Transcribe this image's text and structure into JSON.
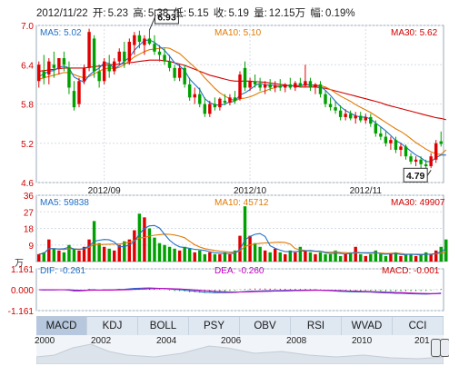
{
  "header": {
    "date": "2012/11/22",
    "open_label": "开:",
    "open": "5.23",
    "high_label": "高:",
    "high": "5.38",
    "low_label": "低:",
    "low": "5.15",
    "close_label": "收:",
    "close": "5.19",
    "volume_label": "量:",
    "volume": "12.15万",
    "amplitude_label": "幅:",
    "amplitude": "0.19%"
  },
  "chart_data": [
    {
      "type": "candlestick",
      "panel": "price",
      "ylim": [
        4.6,
        7.0
      ],
      "yticks": [
        "7.0",
        "6.4",
        "5.8",
        "5.2",
        "4.6"
      ],
      "xtick_labels": [
        {
          "label": "2012/09",
          "index": 13
        },
        {
          "label": "2012/10",
          "index": 42
        },
        {
          "label": "2012/11",
          "index": 65
        }
      ],
      "legend": [
        {
          "text": "MA5: 5.02",
          "color": "#2070c8",
          "place": "top-left"
        },
        {
          "text": "MA10: 5.10",
          "color": "#e07a00",
          "place": "top-center"
        },
        {
          "text": "MA30: 5.62",
          "color": "#d00000",
          "place": "top-right"
        }
      ],
      "annotations": [
        {
          "text": "6.93",
          "index": 22,
          "value": 6.93
        },
        {
          "text": "4.79",
          "index": 78,
          "value": 4.79
        }
      ],
      "candles": [
        {
          "o": 6.15,
          "h": 6.45,
          "l": 6.05,
          "c": 6.4
        },
        {
          "o": 6.3,
          "h": 6.55,
          "l": 6.1,
          "c": 6.2
        },
        {
          "o": 6.25,
          "h": 6.5,
          "l": 6.1,
          "c": 6.45
        },
        {
          "o": 6.4,
          "h": 6.6,
          "l": 6.2,
          "c": 6.35
        },
        {
          "o": 6.35,
          "h": 6.5,
          "l": 6.25,
          "c": 6.5
        },
        {
          "o": 6.5,
          "h": 6.6,
          "l": 6.3,
          "c": 6.4
        },
        {
          "o": 6.35,
          "h": 6.45,
          "l": 5.95,
          "c": 6.05
        },
        {
          "o": 6.0,
          "h": 6.15,
          "l": 5.7,
          "c": 5.75
        },
        {
          "o": 5.8,
          "h": 6.2,
          "l": 5.75,
          "c": 6.15
        },
        {
          "o": 6.15,
          "h": 6.4,
          "l": 6.1,
          "c": 6.35
        },
        {
          "o": 6.35,
          "h": 6.95,
          "l": 6.3,
          "c": 6.9
        },
        {
          "o": 6.8,
          "h": 6.85,
          "l": 6.2,
          "c": 6.3
        },
        {
          "o": 6.3,
          "h": 6.4,
          "l": 6.05,
          "c": 6.15
        },
        {
          "o": 6.15,
          "h": 6.5,
          "l": 6.1,
          "c": 6.45
        },
        {
          "o": 6.4,
          "h": 6.55,
          "l": 6.2,
          "c": 6.3
        },
        {
          "o": 6.3,
          "h": 6.5,
          "l": 6.25,
          "c": 6.45
        },
        {
          "o": 6.45,
          "h": 6.65,
          "l": 6.4,
          "c": 6.6
        },
        {
          "o": 6.6,
          "h": 6.75,
          "l": 6.35,
          "c": 6.45
        },
        {
          "o": 6.45,
          "h": 6.8,
          "l": 6.4,
          "c": 6.75
        },
        {
          "o": 6.7,
          "h": 6.9,
          "l": 6.55,
          "c": 6.85
        },
        {
          "o": 6.85,
          "h": 6.92,
          "l": 6.65,
          "c": 6.75
        },
        {
          "o": 6.7,
          "h": 6.85,
          "l": 6.55,
          "c": 6.8
        },
        {
          "o": 6.8,
          "h": 6.93,
          "l": 6.7,
          "c": 6.72
        },
        {
          "o": 6.72,
          "h": 6.85,
          "l": 6.55,
          "c": 6.6
        },
        {
          "o": 6.6,
          "h": 6.7,
          "l": 6.45,
          "c": 6.55
        },
        {
          "o": 6.55,
          "h": 6.65,
          "l": 6.4,
          "c": 6.45
        },
        {
          "o": 6.45,
          "h": 6.55,
          "l": 6.3,
          "c": 6.35
        },
        {
          "o": 6.35,
          "h": 6.4,
          "l": 6.15,
          "c": 6.2
        },
        {
          "o": 6.2,
          "h": 6.4,
          "l": 6.15,
          "c": 6.35
        },
        {
          "o": 6.35,
          "h": 6.4,
          "l": 6.05,
          "c": 6.1
        },
        {
          "o": 6.1,
          "h": 6.2,
          "l": 5.85,
          "c": 5.9
        },
        {
          "o": 5.9,
          "h": 6.05,
          "l": 5.8,
          "c": 5.95
        },
        {
          "o": 5.95,
          "h": 6.05,
          "l": 5.75,
          "c": 5.8
        },
        {
          "o": 5.8,
          "h": 5.9,
          "l": 5.6,
          "c": 5.65
        },
        {
          "o": 5.65,
          "h": 5.85,
          "l": 5.6,
          "c": 5.8
        },
        {
          "o": 5.8,
          "h": 5.9,
          "l": 5.7,
          "c": 5.75
        },
        {
          "o": 5.75,
          "h": 5.9,
          "l": 5.7,
          "c": 5.88
        },
        {
          "o": 5.85,
          "h": 5.95,
          "l": 5.78,
          "c": 5.82
        },
        {
          "o": 5.82,
          "h": 5.95,
          "l": 5.78,
          "c": 5.9
        },
        {
          "o": 5.9,
          "h": 6.0,
          "l": 5.8,
          "c": 5.85
        },
        {
          "o": 5.88,
          "h": 6.3,
          "l": 5.85,
          "c": 6.25
        },
        {
          "o": 6.35,
          "h": 6.45,
          "l": 6.0,
          "c": 6.05
        },
        {
          "o": 6.05,
          "h": 6.2,
          "l": 6.0,
          "c": 6.15
        },
        {
          "o": 6.15,
          "h": 6.25,
          "l": 6.05,
          "c": 6.1
        },
        {
          "o": 6.1,
          "h": 6.2,
          "l": 6.0,
          "c": 6.05
        },
        {
          "o": 6.05,
          "h": 6.15,
          "l": 5.95,
          "c": 6.1
        },
        {
          "o": 6.1,
          "h": 6.18,
          "l": 6.0,
          "c": 6.05
        },
        {
          "o": 6.05,
          "h": 6.15,
          "l": 5.98,
          "c": 6.08
        },
        {
          "o": 6.08,
          "h": 6.18,
          "l": 6.0,
          "c": 6.05
        },
        {
          "o": 6.05,
          "h": 6.12,
          "l": 5.98,
          "c": 6.1
        },
        {
          "o": 6.1,
          "h": 6.2,
          "l": 6.02,
          "c": 6.05
        },
        {
          "o": 6.05,
          "h": 6.15,
          "l": 6.0,
          "c": 6.12
        },
        {
          "o": 6.12,
          "h": 6.2,
          "l": 6.05,
          "c": 6.08
        },
        {
          "o": 6.08,
          "h": 6.4,
          "l": 6.05,
          "c": 6.15
        },
        {
          "o": 6.15,
          "h": 6.2,
          "l": 6.0,
          "c": 6.05
        },
        {
          "o": 6.05,
          "h": 6.12,
          "l": 5.95,
          "c": 6.1
        },
        {
          "o": 6.1,
          "h": 6.15,
          "l": 5.9,
          "c": 5.95
        },
        {
          "o": 5.95,
          "h": 6.0,
          "l": 5.75,
          "c": 5.8
        },
        {
          "o": 5.8,
          "h": 5.9,
          "l": 5.7,
          "c": 5.75
        },
        {
          "o": 5.75,
          "h": 5.85,
          "l": 5.65,
          "c": 5.7
        },
        {
          "o": 5.7,
          "h": 5.78,
          "l": 5.55,
          "c": 5.6
        },
        {
          "o": 5.6,
          "h": 5.72,
          "l": 5.55,
          "c": 5.65
        },
        {
          "o": 5.65,
          "h": 5.7,
          "l": 5.55,
          "c": 5.58
        },
        {
          "o": 5.58,
          "h": 5.68,
          "l": 5.5,
          "c": 5.62
        },
        {
          "o": 5.62,
          "h": 5.68,
          "l": 5.52,
          "c": 5.55
        },
        {
          "o": 5.55,
          "h": 5.65,
          "l": 5.5,
          "c": 5.6
        },
        {
          "o": 5.6,
          "h": 5.65,
          "l": 5.45,
          "c": 5.5
        },
        {
          "o": 5.5,
          "h": 5.55,
          "l": 5.3,
          "c": 5.35
        },
        {
          "o": 5.35,
          "h": 5.45,
          "l": 5.25,
          "c": 5.3
        },
        {
          "o": 5.3,
          "h": 5.38,
          "l": 5.15,
          "c": 5.2
        },
        {
          "o": 5.2,
          "h": 5.3,
          "l": 5.1,
          "c": 5.25
        },
        {
          "o": 5.25,
          "h": 5.3,
          "l": 5.05,
          "c": 5.1
        },
        {
          "o": 5.1,
          "h": 5.2,
          "l": 5.0,
          "c": 5.15
        },
        {
          "o": 5.15,
          "h": 5.18,
          "l": 4.95,
          "c": 5.0
        },
        {
          "o": 5.0,
          "h": 5.05,
          "l": 4.88,
          "c": 4.92
        },
        {
          "o": 4.92,
          "h": 5.0,
          "l": 4.85,
          "c": 4.95
        },
        {
          "o": 4.95,
          "h": 5.0,
          "l": 4.82,
          "c": 4.88
        },
        {
          "o": 4.88,
          "h": 4.95,
          "l": 4.79,
          "c": 4.85
        },
        {
          "o": 4.85,
          "h": 5.05,
          "l": 4.82,
          "c": 5.0
        },
        {
          "o": 4.95,
          "h": 5.25,
          "l": 4.9,
          "c": 5.2
        },
        {
          "o": 5.23,
          "h": 5.38,
          "l": 5.15,
          "c": 5.19
        }
      ],
      "ma5": [
        6.22,
        6.26,
        6.3,
        6.31,
        6.36,
        6.38,
        6.35,
        6.21,
        6.17,
        6.13,
        6.24,
        6.3,
        6.35,
        6.43,
        6.42,
        6.33,
        6.39,
        6.45,
        6.51,
        6.62,
        6.7,
        6.77,
        6.78,
        6.74,
        6.68,
        6.62,
        6.53,
        6.43,
        6.38,
        6.31,
        6.18,
        6.1,
        6.02,
        5.88,
        5.82,
        5.79,
        5.78,
        5.8,
        5.83,
        5.84,
        5.94,
        5.97,
        6.02,
        6.08,
        6.12,
        6.09,
        6.09,
        6.08,
        6.07,
        6.08,
        6.08,
        6.08,
        6.08,
        6.1,
        6.09,
        6.08,
        6.07,
        6.01,
        5.93,
        5.84,
        5.76,
        5.7,
        5.66,
        5.62,
        5.6,
        5.6,
        5.57,
        5.51,
        5.45,
        5.39,
        5.32,
        5.24,
        5.2,
        5.14,
        5.08,
        5.02,
        4.98,
        4.92,
        4.92,
        4.98,
        5.02,
        5.02
      ],
      "ma10": [
        6.18,
        6.2,
        6.22,
        6.24,
        6.26,
        6.28,
        6.28,
        6.25,
        6.22,
        6.2,
        6.22,
        6.26,
        6.3,
        6.34,
        6.35,
        6.34,
        6.36,
        6.4,
        6.46,
        6.52,
        6.56,
        6.6,
        6.63,
        6.64,
        6.65,
        6.66,
        6.65,
        6.61,
        6.57,
        6.5,
        6.43,
        6.36,
        6.29,
        6.2,
        6.12,
        6.04,
        5.97,
        5.92,
        5.88,
        5.85,
        5.88,
        5.89,
        5.91,
        5.94,
        5.98,
        6.0,
        6.03,
        6.05,
        6.07,
        6.08,
        6.08,
        6.08,
        6.08,
        6.09,
        6.09,
        6.09,
        6.08,
        6.06,
        6.02,
        5.97,
        5.92,
        5.88,
        5.84,
        5.79,
        5.75,
        5.71,
        5.67,
        5.62,
        5.57,
        5.52,
        5.47,
        5.42,
        5.38,
        5.33,
        5.27,
        5.21,
        5.16,
        5.11,
        5.07,
        5.04,
        5.03,
        5.1
      ],
      "ma30": [
        6.3,
        6.31,
        6.32,
        6.33,
        6.34,
        6.35,
        6.35,
        6.35,
        6.35,
        6.35,
        6.36,
        6.37,
        6.38,
        6.39,
        6.4,
        6.4,
        6.41,
        6.42,
        6.43,
        6.44,
        6.45,
        6.46,
        6.47,
        6.47,
        6.47,
        6.46,
        6.45,
        6.43,
        6.41,
        6.39,
        6.36,
        6.33,
        6.3,
        6.27,
        6.24,
        6.22,
        6.2,
        6.18,
        6.16,
        6.15,
        6.15,
        6.15,
        6.15,
        6.14,
        6.14,
        6.13,
        6.12,
        6.11,
        6.1,
        6.09,
        6.08,
        6.07,
        6.06,
        6.06,
        6.06,
        6.06,
        6.05,
        6.04,
        6.02,
        6.0,
        5.98,
        5.96,
        5.94,
        5.92,
        5.9,
        5.88,
        5.86,
        5.84,
        5.82,
        5.79,
        5.77,
        5.75,
        5.73,
        5.71,
        5.69,
        5.67,
        5.65,
        5.63,
        5.61,
        5.59,
        5.58,
        5.56
      ]
    },
    {
      "type": "bar",
      "panel": "volume",
      "ylim": [
        0,
        36
      ],
      "yticks": [
        "36",
        "27",
        "18",
        "9"
      ],
      "unit_label": "万",
      "legend": [
        {
          "text": "MA5: 59838",
          "color": "#2070c8"
        },
        {
          "text": "MA10: 45712",
          "color": "#e07a00"
        },
        {
          "text": "MA30: 49907",
          "color": "#d00000"
        }
      ],
      "values": [
        4,
        5,
        12,
        7,
        6,
        5,
        9,
        7,
        6,
        8,
        12,
        22,
        10,
        8,
        7,
        6,
        9,
        11,
        12,
        17,
        26,
        24,
        18,
        13,
        10,
        9,
        8,
        7,
        6,
        8,
        7,
        5,
        6,
        4,
        5,
        4,
        4,
        5,
        4,
        6,
        14,
        30,
        14,
        10,
        8,
        6,
        5,
        7,
        5,
        4,
        6,
        5,
        8,
        6,
        5,
        4,
        5,
        4,
        4,
        6,
        3,
        4,
        5,
        8,
        4,
        3,
        4,
        6,
        4,
        3,
        4,
        5,
        3,
        4,
        4,
        3,
        4,
        5,
        4,
        6,
        8,
        12
      ]
    },
    {
      "type": "bar",
      "panel": "macd",
      "ylim": [
        -1.161,
        1.161
      ],
      "yticks": [
        "1.161",
        "0.000",
        "-1.161"
      ],
      "legend": [
        {
          "text": "DIF: -0.261",
          "color": "#2070c8"
        },
        {
          "text": "DEA: -0.260",
          "color": "#c000c0"
        },
        {
          "text": "MACD: -0.001",
          "color": "#d00000"
        }
      ]
    }
  ],
  "tabs": [
    "MACD",
    "KDJ",
    "BOLL",
    "PSY",
    "OBV",
    "RSI",
    "WVAD",
    "CCI"
  ],
  "active_tab": "MACD",
  "navigator": {
    "years": [
      "2000",
      "2002",
      "2004",
      "2006",
      "2008",
      "2010",
      "201"
    ]
  }
}
